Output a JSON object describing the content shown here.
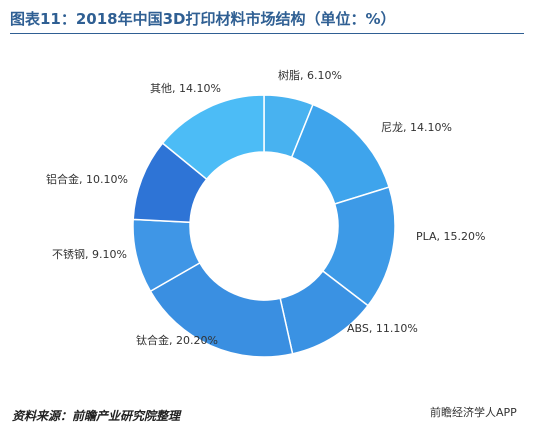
{
  "chart_data": {
    "type": "pie",
    "title": "图表11：2018年中国3D打印材料市场结构（单位：%）",
    "categories": [
      "树脂",
      "尼龙",
      "PLA",
      "ABS",
      "钛合金",
      "不锈钢",
      "铝合金",
      "其他"
    ],
    "values": [
      6.1,
      14.1,
      15.2,
      11.1,
      20.2,
      9.1,
      10.1,
      14.1
    ],
    "labels": [
      "树脂, 6.10%",
      "尼龙, 14.10%",
      "PLA, 15.20%",
      "ABS, 11.10%",
      "钛合金, 20.20%",
      "不锈钢, 9.10%",
      "铝合金, 10.10%",
      "其他, 14.10%"
    ],
    "colors": [
      "#48b2f0",
      "#3ea4ec",
      "#3d9ae7",
      "#3a92e3",
      "#3a8fe1",
      "#3f96e6",
      "#2e74d6",
      "#4cbcf6"
    ],
    "donut": true,
    "legend": "none"
  },
  "source": "资料来源：前瞻产业研究院整理",
  "app_logo": "前瞻经济学人APP"
}
